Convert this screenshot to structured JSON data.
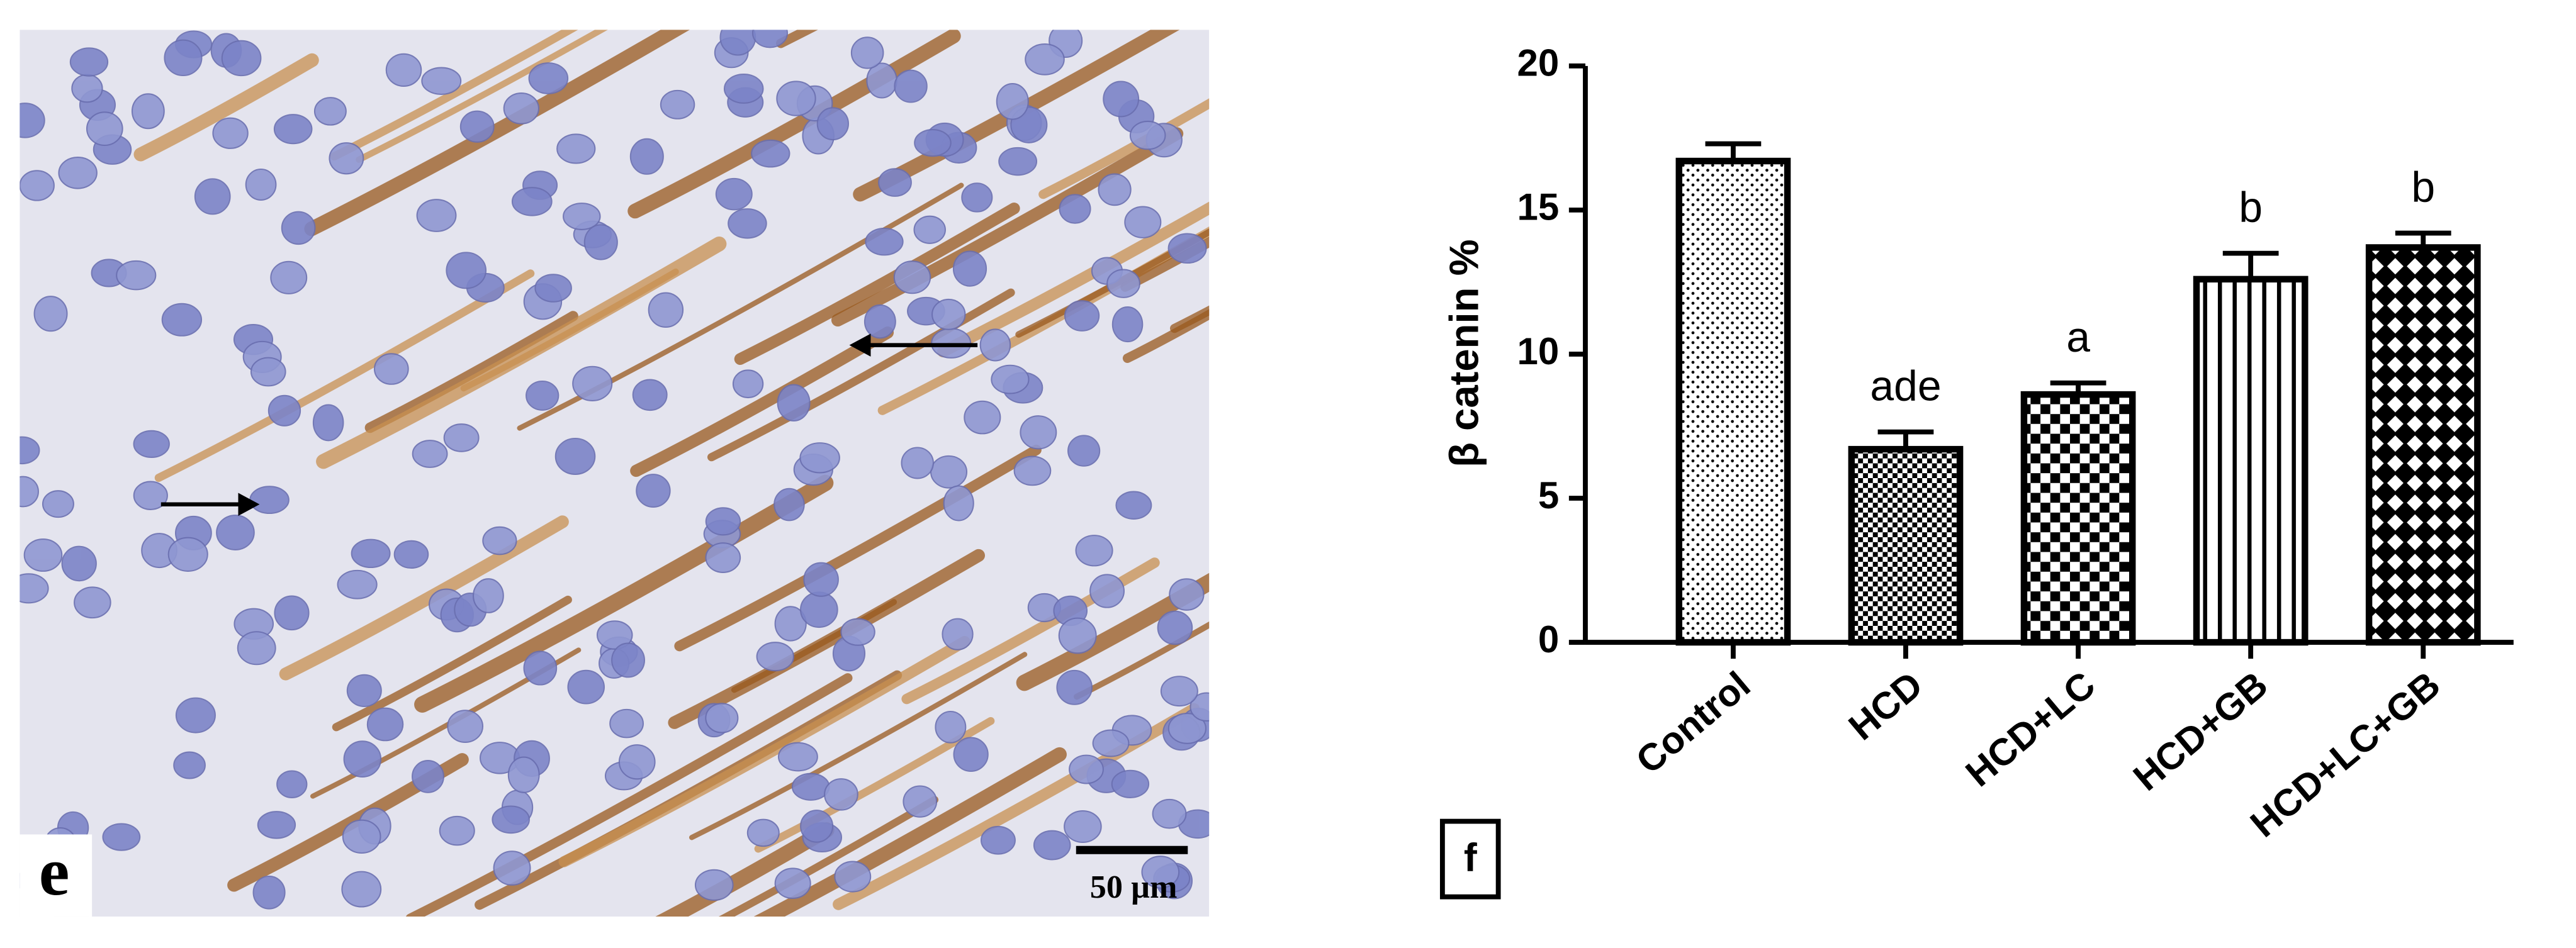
{
  "panel_e": {
    "label": "e",
    "scale_bar": "50 µm"
  },
  "chart_data": {
    "type": "bar",
    "panel_label": "f",
    "ylabel": "β catenin %",
    "categories": [
      "Control",
      "HCD",
      "HCD+LC",
      "HCD+GB",
      "HCD+LC+GB"
    ],
    "values": [
      16.7,
      6.7,
      8.6,
      12.6,
      13.7
    ],
    "errors": [
      0.6,
      0.6,
      0.4,
      0.9,
      0.5
    ],
    "annotations": [
      null,
      "ade",
      "a",
      "b",
      "b"
    ],
    "color": "#000000",
    "ylim": [
      0,
      20
    ],
    "yticks": [
      0,
      5,
      10,
      15,
      20
    ]
  }
}
